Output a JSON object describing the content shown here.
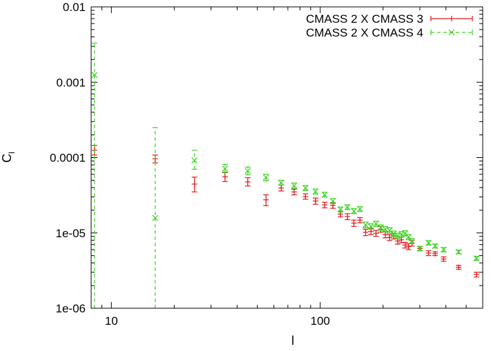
{
  "chart_data": {
    "type": "scatter",
    "title": "",
    "xlabel": "l",
    "ylabel": "C_l",
    "xscale": "log",
    "yscale": "log",
    "xlim": [
      8,
      600
    ],
    "ylim": [
      1e-06,
      0.01
    ],
    "x_ticks": [
      {
        "value": 10,
        "label": "10"
      },
      {
        "value": 100,
        "label": "100"
      }
    ],
    "y_ticks": [
      {
        "value": 1e-06,
        "label": "1e-06"
      },
      {
        "value": 1e-05,
        "label": "1e-05"
      },
      {
        "value": 0.0001,
        "label": "0.0001"
      },
      {
        "value": 0.001,
        "label": "0.001"
      },
      {
        "value": 0.01,
        "label": "0.01"
      }
    ],
    "legend_position": "top-right",
    "series": [
      {
        "name": "CMASS 2 X CMASS 3",
        "color": "#e0191b",
        "marker": "plus",
        "error_style": "solid",
        "points": [
          {
            "x": 8.3,
            "y": 0.000125,
            "lo": 0.000108,
            "hi": 0.000145
          },
          {
            "x": 16.2,
            "y": 9.65e-05,
            "lo": 8.5e-05,
            "hi": 0.000108
          },
          {
            "x": 25,
            "y": 4.45e-05,
            "lo": 3.5e-05,
            "hi": 5.5e-05
          },
          {
            "x": 35,
            "y": 5.55e-05,
            "lo": 4.8e-05,
            "hi": 6.4e-05
          },
          {
            "x": 45,
            "y": 4.75e-05,
            "lo": 4.2e-05,
            "hi": 5.4e-05
          },
          {
            "x": 55,
            "y": 2.75e-05,
            "lo": 2.3e-05,
            "hi": 3.2e-05
          },
          {
            "x": 65,
            "y": 3.95e-05,
            "lo": 3.6e-05,
            "hi": 4.3e-05
          },
          {
            "x": 75,
            "y": 3.5e-05,
            "lo": 3.2e-05,
            "hi": 3.8e-05
          },
          {
            "x": 85,
            "y": 3.02e-05,
            "lo": 2.8e-05,
            "hi": 3.3e-05
          },
          {
            "x": 95,
            "y": 2.65e-05,
            "lo": 2.4e-05,
            "hi": 2.9e-05
          },
          {
            "x": 105,
            "y": 2.35e-05,
            "lo": 2.15e-05,
            "hi": 2.55e-05
          },
          {
            "x": 115,
            "y": 2.32e-05,
            "lo": 2.12e-05,
            "hi": 2.52e-05
          },
          {
            "x": 125,
            "y": 1.78e-05,
            "lo": 1.63e-05,
            "hi": 1.93e-05
          },
          {
            "x": 135,
            "y": 1.65e-05,
            "lo": 1.5e-05,
            "hi": 1.8e-05
          },
          {
            "x": 145,
            "y": 1.35e-05,
            "lo": 1.22e-05,
            "hi": 1.48e-05
          },
          {
            "x": 155,
            "y": 1.48e-05,
            "lo": 1.36e-05,
            "hi": 1.6e-05
          },
          {
            "x": 165,
            "y": 1.02e-05,
            "lo": 9.2e-06,
            "hi": 1.12e-05
          },
          {
            "x": 175,
            "y": 1.05e-05,
            "lo": 9.5e-06,
            "hi": 1.15e-05
          },
          {
            "x": 185,
            "y": 9.9e-06,
            "lo": 9e-06,
            "hi": 1.08e-05
          },
          {
            "x": 195,
            "y": 1.12e-05,
            "lo": 1.02e-05,
            "hi": 1.22e-05
          },
          {
            "x": 205,
            "y": 9.5e-06,
            "lo": 8.6e-06,
            "hi": 1.04e-05
          },
          {
            "x": 215,
            "y": 8.7e-06,
            "lo": 7.9e-06,
            "hi": 9.5e-06
          },
          {
            "x": 225,
            "y": 9.1e-06,
            "lo": 8.3e-06,
            "hi": 9.9e-06
          },
          {
            "x": 235,
            "y": 7.8e-06,
            "lo": 7.1e-06,
            "hi": 8.5e-06
          },
          {
            "x": 245,
            "y": 8.1e-06,
            "lo": 7.4e-06,
            "hi": 8.8e-06
          },
          {
            "x": 255,
            "y": 6.9e-06,
            "lo": 6.3e-06,
            "hi": 7.5e-06
          },
          {
            "x": 265,
            "y": 6.6e-06,
            "lo": 6e-06,
            "hi": 7.2e-06
          },
          {
            "x": 275,
            "y": 7.3e-06,
            "lo": 6.7e-06,
            "hi": 7.9e-06
          },
          {
            "x": 300,
            "y": 6.2e-06,
            "lo": 5.8e-06,
            "hi": 6.6e-06
          },
          {
            "x": 330,
            "y": 5.4e-06,
            "lo": 5e-06,
            "hi": 5.8e-06
          },
          {
            "x": 355,
            "y": 5.3e-06,
            "lo": 5e-06,
            "hi": 5.6e-06
          },
          {
            "x": 390,
            "y": 4.5e-06,
            "lo": 4.2e-06,
            "hi": 4.8e-06
          },
          {
            "x": 460,
            "y": 3.5e-06,
            "lo": 3.3e-06,
            "hi": 3.7e-06
          },
          {
            "x": 560,
            "y": 2.8e-06,
            "lo": 2.6e-06,
            "hi": 3e-06
          }
        ]
      },
      {
        "name": "CMASS 2 X CMASS 4",
        "color": "#39d21e",
        "marker": "cross",
        "error_style": "dashed",
        "points": [
          {
            "x": 8.3,
            "y": 0.00125,
            "lo": 1e-06,
            "hi": 0.0033
          },
          {
            "x": 16.2,
            "y": 1.58e-05,
            "lo": 1e-06,
            "hi": 0.00025
          },
          {
            "x": 25,
            "y": 9.2e-05,
            "lo": 7e-05,
            "hi": 0.000125
          },
          {
            "x": 35,
            "y": 7.15e-05,
            "lo": 6.3e-05,
            "hi": 8.1e-05
          },
          {
            "x": 45,
            "y": 6.65e-05,
            "lo": 5.9e-05,
            "hi": 7.5e-05
          },
          {
            "x": 55,
            "y": 5.45e-05,
            "lo": 4.9e-05,
            "hi": 6e-05
          },
          {
            "x": 65,
            "y": 4.65e-05,
            "lo": 4.3e-05,
            "hi": 5e-05
          },
          {
            "x": 75,
            "y": 4.25e-05,
            "lo": 3.9e-05,
            "hi": 4.6e-05
          },
          {
            "x": 85,
            "y": 3.95e-05,
            "lo": 3.65e-05,
            "hi": 4.25e-05
          },
          {
            "x": 95,
            "y": 3.55e-05,
            "lo": 3.28e-05,
            "hi": 3.82e-05
          },
          {
            "x": 105,
            "y": 3.22e-05,
            "lo": 2.98e-05,
            "hi": 3.46e-05
          },
          {
            "x": 115,
            "y": 2.65e-05,
            "lo": 2.45e-05,
            "hi": 2.85e-05
          },
          {
            "x": 125,
            "y": 2.05e-05,
            "lo": 1.9e-05,
            "hi": 2.2e-05
          },
          {
            "x": 135,
            "y": 2.2e-05,
            "lo": 2.04e-05,
            "hi": 2.36e-05
          },
          {
            "x": 145,
            "y": 1.95e-05,
            "lo": 1.8e-05,
            "hi": 2.1e-05
          },
          {
            "x": 155,
            "y": 2.08e-05,
            "lo": 1.93e-05,
            "hi": 2.23e-05
          },
          {
            "x": 165,
            "y": 1.28e-05,
            "lo": 1.17e-05,
            "hi": 1.39e-05
          },
          {
            "x": 175,
            "y": 1.22e-05,
            "lo": 1.12e-05,
            "hi": 1.32e-05
          },
          {
            "x": 185,
            "y": 1.32e-05,
            "lo": 1.21e-05,
            "hi": 1.43e-05
          },
          {
            "x": 195,
            "y": 1.18e-05,
            "lo": 1.08e-05,
            "hi": 1.28e-05
          },
          {
            "x": 205,
            "y": 1.12e-05,
            "lo": 1.03e-05,
            "hi": 1.21e-05
          },
          {
            "x": 215,
            "y": 1.08e-05,
            "lo": 9.9e-06,
            "hi": 1.17e-05
          },
          {
            "x": 225,
            "y": 9.8e-06,
            "lo": 9e-06,
            "hi": 1.06e-05
          },
          {
            "x": 235,
            "y": 9.2e-06,
            "lo": 8.5e-06,
            "hi": 9.9e-06
          },
          {
            "x": 245,
            "y": 9.6e-06,
            "lo": 8.8e-06,
            "hi": 1.04e-05
          },
          {
            "x": 255,
            "y": 9.9e-06,
            "lo": 9.1e-06,
            "hi": 1.07e-05
          },
          {
            "x": 265,
            "y": 8.8e-06,
            "lo": 8.1e-06,
            "hi": 9.5e-06
          },
          {
            "x": 275,
            "y": 7.8e-06,
            "lo": 7.2e-06,
            "hi": 8.4e-06
          },
          {
            "x": 300,
            "y": 6.2e-06,
            "lo": 5.8e-06,
            "hi": 6.6e-06
          },
          {
            "x": 330,
            "y": 7.4e-06,
            "lo": 6.9e-06,
            "hi": 7.9e-06
          },
          {
            "x": 355,
            "y": 6.7e-06,
            "lo": 6.3e-06,
            "hi": 7.1e-06
          },
          {
            "x": 390,
            "y": 6e-06,
            "lo": 5.6e-06,
            "hi": 6.4e-06
          },
          {
            "x": 460,
            "y": 5.6e-06,
            "lo": 5.3e-06,
            "hi": 5.9e-06
          },
          {
            "x": 560,
            "y": 4.6e-06,
            "lo": 4.3e-06,
            "hi": 4.9e-06
          }
        ]
      }
    ]
  }
}
